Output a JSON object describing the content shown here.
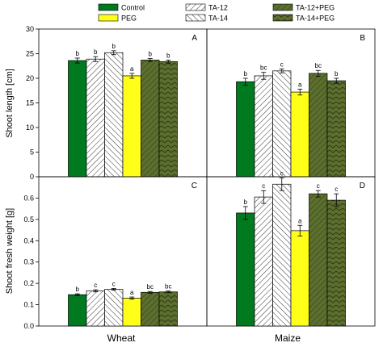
{
  "chart_data": {
    "type": "bar",
    "legend": {
      "placement": "top",
      "entries": [
        {
          "name": "Control",
          "color": "#007a1f",
          "pattern": "solid"
        },
        {
          "name": "TA-12",
          "color": "#ffffff",
          "pattern": "hatch-forward"
        },
        {
          "name": "TA-12+PEG",
          "color": "#5c6f2e",
          "pattern": "hatch-forward-dark"
        },
        {
          "name": "PEG",
          "color": "#ffff1a",
          "pattern": "solid"
        },
        {
          "name": "TA-14",
          "color": "#ffffff",
          "pattern": "hatch-back"
        },
        {
          "name": "TA-14+PEG",
          "color": "#5c6f2e",
          "pattern": "chevron-dark"
        }
      ]
    },
    "series_order": [
      "Control",
      "TA-12",
      "TA-14",
      "PEG",
      "TA-12+PEG",
      "TA-14+PEG"
    ],
    "series_plot_order": [
      "Control",
      "TA-12",
      "TA-14",
      "PEG",
      "TA-12+PEG",
      "TA-14+PEG"
    ],
    "categories": [
      "Wheat",
      "Maize"
    ],
    "panels": [
      {
        "letter": "A",
        "crop": "Wheat",
        "ylabel": "Shoot length [cm]",
        "ylim": [
          0,
          30
        ],
        "yticks": [
          "0",
          "5",
          "10",
          "15",
          "20",
          "25",
          "30"
        ],
        "bars": [
          {
            "series": "Control",
            "value": 23.6,
            "err": 0.5,
            "sig": "b"
          },
          {
            "series": "TA-12",
            "value": 23.9,
            "err": 0.5,
            "sig": "b"
          },
          {
            "series": "TA-14",
            "value": 25.2,
            "err": 0.4,
            "sig": "b"
          },
          {
            "series": "PEG",
            "value": 20.5,
            "err": 0.5,
            "sig": "a"
          },
          {
            "series": "TA-12+PEG",
            "value": 23.7,
            "err": 0.3,
            "sig": "b"
          },
          {
            "series": "TA-14+PEG",
            "value": 23.4,
            "err": 0.3,
            "sig": "b"
          }
        ]
      },
      {
        "letter": "B",
        "crop": "Maize",
        "ylabel": "",
        "ylim": [
          0,
          30
        ],
        "yticks": [],
        "bars": [
          {
            "series": "Control",
            "value": 19.3,
            "err": 0.7,
            "sig": "b"
          },
          {
            "series": "TA-12",
            "value": 20.5,
            "err": 0.7,
            "sig": "bc"
          },
          {
            "series": "TA-14",
            "value": 21.5,
            "err": 0.4,
            "sig": "c"
          },
          {
            "series": "PEG",
            "value": 17.2,
            "err": 0.6,
            "sig": "a"
          },
          {
            "series": "TA-12+PEG",
            "value": 21.0,
            "err": 0.6,
            "sig": "bc"
          },
          {
            "series": "TA-14+PEG",
            "value": 19.5,
            "err": 0.5,
            "sig": "b"
          }
        ]
      },
      {
        "letter": "C",
        "crop": "Wheat",
        "ylabel": "Shoot fresh weight [g]",
        "ylim": [
          0,
          0.7
        ],
        "yticks": [
          "0.0",
          "0.1",
          "0.2",
          "0.3",
          "0.4",
          "0.5",
          "0.6"
        ],
        "bars": [
          {
            "series": "Control",
            "value": 0.147,
            "err": 0.004,
            "sig": "b"
          },
          {
            "series": "TA-12",
            "value": 0.165,
            "err": 0.005,
            "sig": "c"
          },
          {
            "series": "TA-14",
            "value": 0.172,
            "err": 0.004,
            "sig": "c"
          },
          {
            "series": "PEG",
            "value": 0.131,
            "err": 0.005,
            "sig": "a"
          },
          {
            "series": "TA-12+PEG",
            "value": 0.158,
            "err": 0.004,
            "sig": "bc"
          },
          {
            "series": "TA-14+PEG",
            "value": 0.16,
            "err": 0.004,
            "sig": "bc"
          }
        ]
      },
      {
        "letter": "D",
        "crop": "Maize",
        "ylabel": "",
        "ylim": [
          0,
          0.7
        ],
        "yticks": [],
        "bars": [
          {
            "series": "Control",
            "value": 0.53,
            "err": 0.03,
            "sig": "b"
          },
          {
            "series": "TA-12",
            "value": 0.605,
            "err": 0.03,
            "sig": "c"
          },
          {
            "series": "TA-14",
            "value": 0.665,
            "err": 0.03,
            "sig": "c"
          },
          {
            "series": "PEG",
            "value": 0.447,
            "err": 0.025,
            "sig": "a"
          },
          {
            "series": "TA-12+PEG",
            "value": 0.62,
            "err": 0.015,
            "sig": "c"
          },
          {
            "series": "TA-14+PEG",
            "value": 0.59,
            "err": 0.03,
            "sig": "c"
          }
        ]
      }
    ]
  }
}
